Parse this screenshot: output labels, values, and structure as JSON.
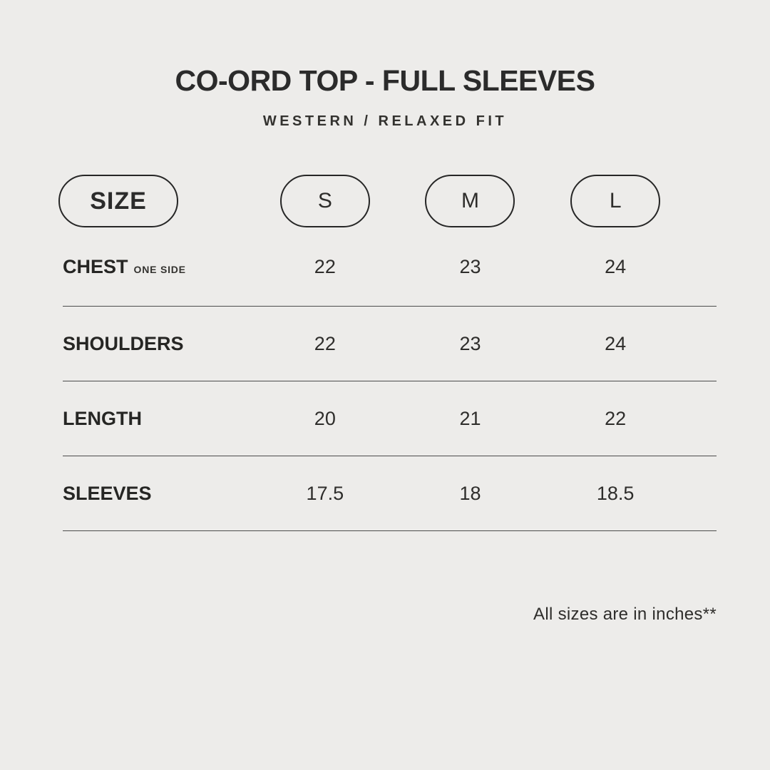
{
  "page": {
    "background_color": "#edecea",
    "text_color": "#2b2b2b",
    "divider_color": "#4c4c4c"
  },
  "header": {
    "title": "CO-ORD TOP - FULL SLEEVES",
    "subtitle": "WESTERN / RELAXED FIT"
  },
  "size_chart": {
    "header_label": "SIZE",
    "sizes": [
      "S",
      "M",
      "L"
    ],
    "rows": [
      {
        "label": "CHEST",
        "sublabel": "ONE SIDE",
        "values": [
          "22",
          "23",
          "24"
        ]
      },
      {
        "label": "SHOULDERS",
        "values": [
          "22",
          "23",
          "24"
        ]
      },
      {
        "label": "LENGTH",
        "values": [
          "20",
          "21",
          "22"
        ]
      },
      {
        "label": "SLEEVES",
        "values": [
          "17.5",
          "18",
          "18.5"
        ]
      }
    ]
  },
  "footer": {
    "note": "All sizes are in inches**"
  },
  "chart_data": {
    "type": "table",
    "title": "CO-ORD TOP - FULL SLEEVES",
    "subtitle": "WESTERN / RELAXED FIT",
    "columns": [
      "SIZE",
      "S",
      "M",
      "L"
    ],
    "rows": [
      {
        "measurement": "CHEST (ONE SIDE)",
        "S": 22,
        "M": 23,
        "L": 24
      },
      {
        "measurement": "SHOULDERS",
        "S": 22,
        "M": 23,
        "L": 24
      },
      {
        "measurement": "LENGTH",
        "S": 20,
        "M": 21,
        "L": 22
      },
      {
        "measurement": "SLEEVES",
        "S": 17.5,
        "M": 18,
        "L": 18.5
      }
    ],
    "units_note": "All sizes are in inches**",
    "layout": "grid lines between rows only, pill-shaped column headers"
  }
}
